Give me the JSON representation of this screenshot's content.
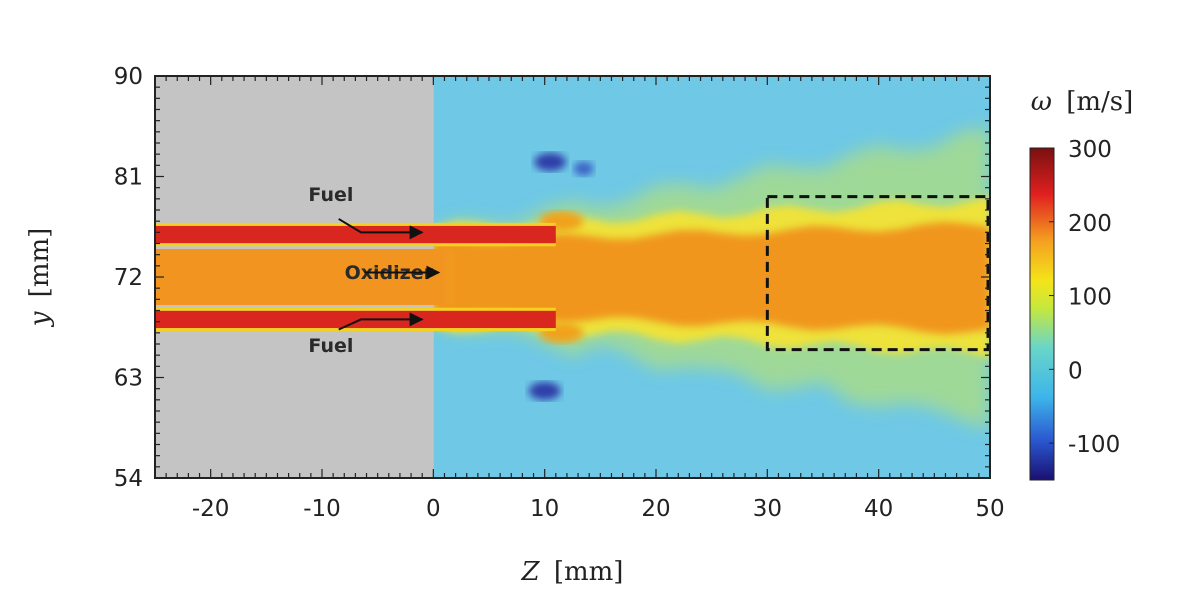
{
  "chart_data": {
    "type": "heatmap",
    "title": "",
    "xlabel": {
      "symbol": "Z",
      "unit": "[mm]"
    },
    "ylabel": {
      "symbol": "y",
      "unit": "[mm]"
    },
    "xlim": [
      -25,
      50
    ],
    "ylim": [
      54,
      90
    ],
    "xticks": [
      "-20",
      "-10",
      "0",
      "10",
      "20",
      "30",
      "40",
      "50"
    ],
    "xtick_values": [
      -20,
      -10,
      0,
      10,
      20,
      30,
      40,
      50
    ],
    "yticks": [
      "54",
      "63",
      "72",
      "81",
      "90"
    ],
    "ytick_values": [
      54,
      63,
      72,
      81,
      90
    ],
    "colorbar": {
      "label_symbol": "ω",
      "label_unit": "[m/s]",
      "range": [
        -150,
        300
      ],
      "ticks": [
        "300",
        "200",
        "100",
        "0",
        "-100"
      ],
      "tick_values": [
        300,
        200,
        100,
        0,
        -100
      ],
      "colormap": "jet"
    },
    "annotations": [
      {
        "text": "Fuel",
        "x": -4,
        "y": 76.5
      },
      {
        "text": "Oxidizer",
        "x": -9,
        "y": 72.5
      },
      {
        "text": "Fuel",
        "x": -6,
        "y": 66.5
      }
    ],
    "highlight_box": {
      "x_range": [
        30,
        50
      ],
      "y_range": [
        65.5,
        79.2
      ],
      "style": "dashed"
    },
    "regions": [
      {
        "name": "injector",
        "x_range": [
          -25,
          0
        ],
        "color": "#c4c4c4"
      }
    ],
    "streams": [
      {
        "name": "fuel-upper",
        "y_center": 75.8,
        "half_width": 0.6,
        "value": 270
      },
      {
        "name": "oxidizer",
        "y_center": 72,
        "half_width": 2.5,
        "value": 200
      },
      {
        "name": "fuel-lower",
        "y_center": 68.2,
        "half_width": 0.6,
        "value": 270
      }
    ],
    "background_value": 40
  }
}
